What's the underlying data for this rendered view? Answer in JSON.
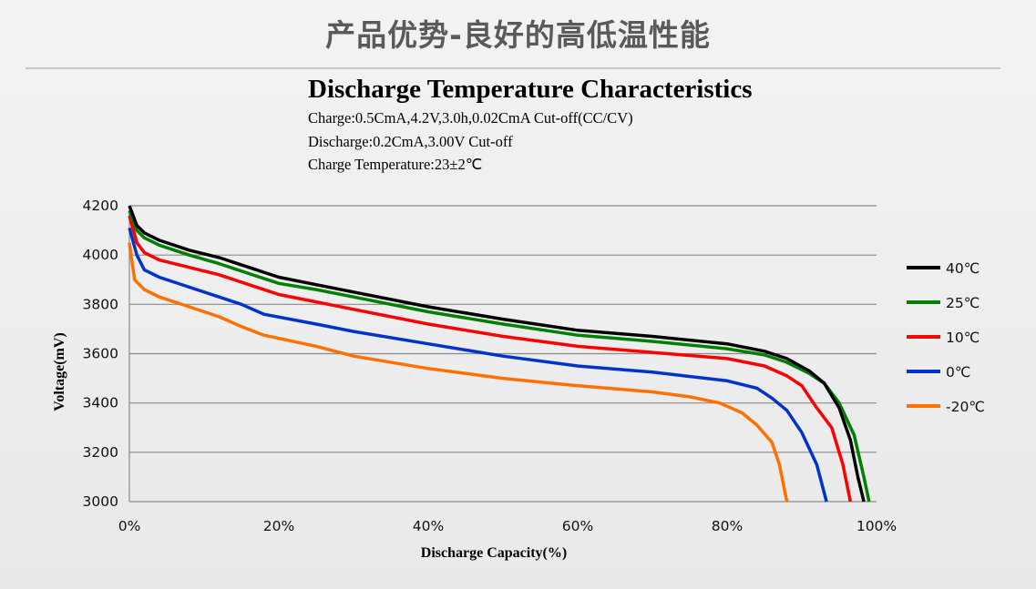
{
  "header": {
    "title": "产品优势-良好的高低温性能"
  },
  "chart_data": {
    "type": "line",
    "title": "Discharge Temperature Characteristics",
    "subtitle": [
      "Charge:0.5CmA,4.2V,3.0h,0.02CmA Cut-off(CC/CV)",
      "Discharge:0.2CmA,3.00V Cut-off",
      "Charge Temperature:23±2℃"
    ],
    "xlabel": "Discharge Capacity(%)",
    "ylabel": "Voltage(mV)",
    "xlim": [
      0,
      100
    ],
    "ylim": [
      3000,
      4200
    ],
    "xticks": [
      "0%",
      "20%",
      "40%",
      "60%",
      "80%",
      "100%"
    ],
    "xtick_values": [
      0,
      20,
      40,
      60,
      80,
      100
    ],
    "yticks": [
      3000,
      3200,
      3400,
      3600,
      3800,
      4000,
      4200
    ],
    "grid": "horizontal",
    "legend": "right",
    "series": [
      {
        "name": "40℃",
        "color": "#000000",
        "points": [
          [
            0,
            4200
          ],
          [
            1,
            4120
          ],
          [
            2,
            4090
          ],
          [
            4,
            4060
          ],
          [
            8,
            4020
          ],
          [
            12,
            3990
          ],
          [
            16,
            3950
          ],
          [
            20,
            3910
          ],
          [
            25,
            3880
          ],
          [
            30,
            3850
          ],
          [
            40,
            3790
          ],
          [
            50,
            3740
          ],
          [
            60,
            3695
          ],
          [
            70,
            3670
          ],
          [
            80,
            3640
          ],
          [
            85,
            3610
          ],
          [
            88,
            3580
          ],
          [
            91,
            3530
          ],
          [
            93,
            3480
          ],
          [
            95,
            3380
          ],
          [
            96.5,
            3250
          ],
          [
            97.5,
            3100
          ],
          [
            98.3,
            3000
          ]
        ]
      },
      {
        "name": "25℃",
        "color": "#008000",
        "points": [
          [
            0,
            4180
          ],
          [
            1,
            4100
          ],
          [
            2,
            4070
          ],
          [
            4,
            4040
          ],
          [
            8,
            4000
          ],
          [
            12,
            3965
          ],
          [
            16,
            3925
          ],
          [
            20,
            3885
          ],
          [
            25,
            3860
          ],
          [
            30,
            3830
          ],
          [
            40,
            3770
          ],
          [
            50,
            3720
          ],
          [
            60,
            3675
          ],
          [
            70,
            3650
          ],
          [
            80,
            3620
          ],
          [
            85,
            3595
          ],
          [
            88,
            3565
          ],
          [
            91,
            3520
          ],
          [
            93,
            3480
          ],
          [
            95,
            3400
          ],
          [
            97,
            3270
          ],
          [
            98.3,
            3100
          ],
          [
            99,
            3000
          ]
        ]
      },
      {
        "name": "10℃",
        "color": "#ff0000",
        "points": [
          [
            0,
            4160
          ],
          [
            1,
            4050
          ],
          [
            2,
            4010
          ],
          [
            4,
            3980
          ],
          [
            8,
            3950
          ],
          [
            12,
            3920
          ],
          [
            16,
            3880
          ],
          [
            20,
            3840
          ],
          [
            25,
            3810
          ],
          [
            30,
            3780
          ],
          [
            40,
            3720
          ],
          [
            50,
            3670
          ],
          [
            60,
            3630
          ],
          [
            70,
            3605
          ],
          [
            80,
            3580
          ],
          [
            85,
            3550
          ],
          [
            88,
            3510
          ],
          [
            90,
            3470
          ],
          [
            92,
            3380
          ],
          [
            94,
            3300
          ],
          [
            95.5,
            3150
          ],
          [
            96.5,
            3000
          ]
        ]
      },
      {
        "name": "0℃",
        "color": "#0033cc",
        "points": [
          [
            0,
            4110
          ],
          [
            1,
            4000
          ],
          [
            2,
            3940
          ],
          [
            4,
            3910
          ],
          [
            8,
            3870
          ],
          [
            12,
            3830
          ],
          [
            15,
            3800
          ],
          [
            18,
            3760
          ],
          [
            25,
            3720
          ],
          [
            30,
            3690
          ],
          [
            40,
            3640
          ],
          [
            50,
            3590
          ],
          [
            60,
            3550
          ],
          [
            70,
            3525
          ],
          [
            80,
            3490
          ],
          [
            84,
            3460
          ],
          [
            86,
            3420
          ],
          [
            88,
            3370
          ],
          [
            90,
            3280
          ],
          [
            92,
            3150
          ],
          [
            93.3,
            3000
          ]
        ]
      },
      {
        "name": "-20℃",
        "color": "#ff7000",
        "points": [
          [
            0,
            4050
          ],
          [
            0.7,
            3900
          ],
          [
            2,
            3860
          ],
          [
            4,
            3830
          ],
          [
            8,
            3790
          ],
          [
            12,
            3750
          ],
          [
            15,
            3710
          ],
          [
            18,
            3675
          ],
          [
            25,
            3630
          ],
          [
            30,
            3590
          ],
          [
            40,
            3540
          ],
          [
            50,
            3500
          ],
          [
            60,
            3470
          ],
          [
            70,
            3445
          ],
          [
            75,
            3425
          ],
          [
            79,
            3400
          ],
          [
            82,
            3360
          ],
          [
            84,
            3310
          ],
          [
            86,
            3240
          ],
          [
            87,
            3150
          ],
          [
            88,
            3000
          ]
        ]
      }
    ]
  }
}
